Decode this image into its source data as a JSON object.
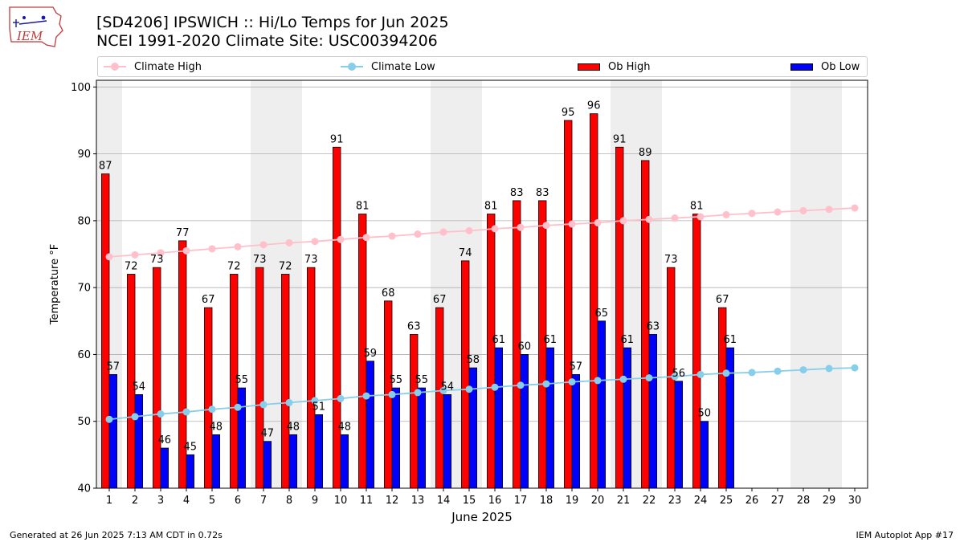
{
  "header": {
    "title_line1": "[SD4206] IPSWICH :: Hi/Lo Temps for Jun 2025",
    "title_line2": "NCEI 1991-2020 Climate Site: USC00394206",
    "logo_text": "IEM"
  },
  "legend": {
    "climate_high": "Climate High",
    "climate_low": "Climate Low",
    "ob_high": "Ob High",
    "ob_low": "Ob Low"
  },
  "footer": {
    "generated": "Generated at 26 Jun 2025 7:13 AM CDT in 0.72s",
    "app": "IEM Autoplot App #17"
  },
  "colors": {
    "ob_high": "#ff0000",
    "ob_low": "#0000ff",
    "climate_high": "#ffc0cb",
    "climate_low": "#87ceeb",
    "weekend_shade": "#eeeeee",
    "grid": "#b0b0b0"
  },
  "chart_data": {
    "type": "bar",
    "xlabel": "June 2025",
    "ylabel": "Temperature °F",
    "ylim": [
      40,
      101
    ],
    "yticks": [
      40,
      50,
      60,
      70,
      80,
      90,
      100
    ],
    "xlim": [
      1,
      30
    ],
    "grid": "horizontal",
    "legend_position": "top",
    "days": [
      1,
      2,
      3,
      4,
      5,
      6,
      7,
      8,
      9,
      10,
      11,
      12,
      13,
      14,
      15,
      16,
      17,
      18,
      19,
      20,
      21,
      22,
      23,
      24,
      25,
      26,
      27,
      28,
      29,
      30
    ],
    "weekend_shaded_days": [
      1,
      7,
      8,
      14,
      15,
      21,
      22,
      28,
      29
    ],
    "series": [
      {
        "name": "Ob High",
        "kind": "bar",
        "values": [
          87,
          72,
          73,
          77,
          67,
          72,
          73,
          72,
          73,
          91,
          81,
          68,
          63,
          67,
          74,
          81,
          83,
          83,
          95,
          96,
          91,
          89,
          73,
          81,
          67
        ]
      },
      {
        "name": "Ob Low",
        "kind": "bar",
        "values": [
          57,
          54,
          46,
          45,
          48,
          55,
          47,
          48,
          51,
          48,
          59,
          55,
          55,
          54,
          58,
          61,
          60,
          61,
          57,
          65,
          61,
          63,
          56,
          50,
          61
        ]
      },
      {
        "name": "Climate High",
        "kind": "line",
        "values": [
          74.6,
          74.9,
          75.2,
          75.5,
          75.8,
          76.1,
          76.4,
          76.7,
          76.9,
          77.2,
          77.5,
          77.7,
          78.0,
          78.3,
          78.5,
          78.8,
          79.0,
          79.3,
          79.5,
          79.7,
          80.0,
          80.2,
          80.4,
          80.6,
          80.9,
          81.1,
          81.3,
          81.5,
          81.7,
          81.9
        ]
      },
      {
        "name": "Climate Low",
        "kind": "line",
        "values": [
          50.3,
          50.7,
          51.1,
          51.4,
          51.8,
          52.1,
          52.5,
          52.8,
          53.1,
          53.4,
          53.8,
          54.0,
          54.3,
          54.6,
          54.8,
          55.1,
          55.4,
          55.6,
          55.9,
          56.1,
          56.3,
          56.5,
          56.7,
          57.0,
          57.2,
          57.3,
          57.5,
          57.7,
          57.9,
          58.0
        ]
      }
    ]
  }
}
